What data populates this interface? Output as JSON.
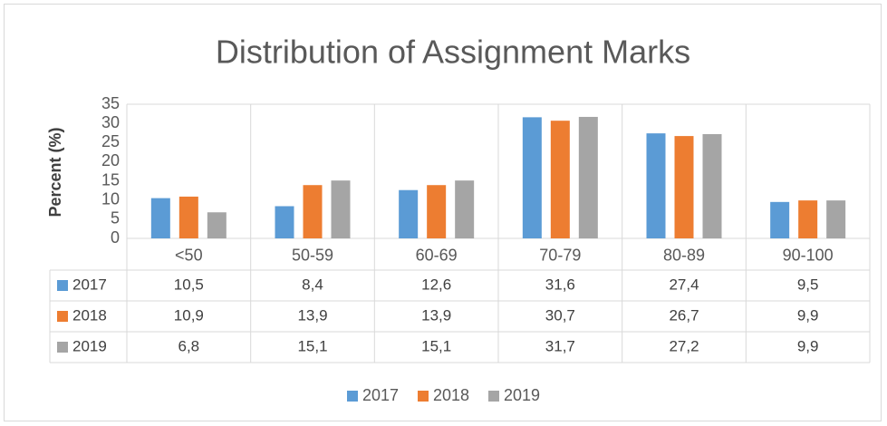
{
  "chart_data": {
    "type": "bar",
    "title": "Distribution of Assignment Marks",
    "y_label": "Percent (%)",
    "categories": [
      "<50",
      "50-59",
      "60-69",
      "70-79",
      "80-89",
      "90-100"
    ],
    "series": [
      {
        "name": "2017",
        "color": "#5b9bd5",
        "values": [
          10.5,
          8.4,
          12.6,
          31.6,
          27.4,
          9.5
        ],
        "value_labels": [
          "10,5",
          "8,4",
          "12,6",
          "31,6",
          "27,4",
          "9,5"
        ]
      },
      {
        "name": "2018",
        "color": "#ed7d31",
        "values": [
          10.9,
          13.9,
          13.9,
          30.7,
          26.7,
          9.9
        ],
        "value_labels": [
          "10,9",
          "13,9",
          "13,9",
          "30,7",
          "26,7",
          "9,9"
        ]
      },
      {
        "name": "2019",
        "color": "#a5a5a5",
        "values": [
          6.8,
          15.1,
          15.1,
          31.7,
          27.2,
          9.9
        ],
        "value_labels": [
          "6,8",
          "15,1",
          "15,1",
          "31,7",
          "27,2",
          "9,9"
        ]
      }
    ],
    "ylim": [
      0,
      35
    ],
    "yticks": [
      0,
      5,
      10,
      15,
      20,
      25,
      30,
      35
    ],
    "grid": false,
    "legend": "bottom"
  }
}
